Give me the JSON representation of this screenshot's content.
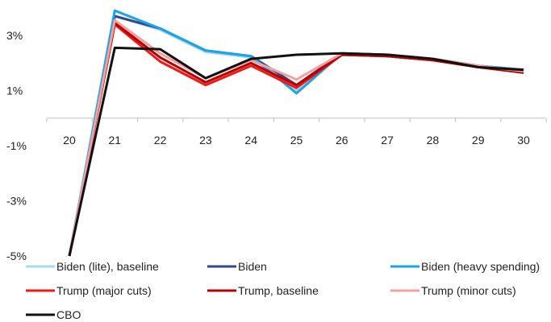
{
  "chart_data": {
    "type": "line",
    "title": "",
    "xlabel": "",
    "ylabel": "",
    "x": [
      "20",
      "21",
      "22",
      "23",
      "24",
      "25",
      "26",
      "27",
      "28",
      "29",
      "30"
    ],
    "y_ticks": [
      "3%",
      "1%",
      "-1%",
      "-3%",
      "-5%"
    ],
    "y_tick_values": [
      3,
      1,
      -1,
      -3,
      -5
    ],
    "ylim": [
      -5,
      4
    ],
    "x_axis_crosses_at": 0,
    "grid": false,
    "legend_position": "bottom",
    "series": [
      {
        "name": "Biden (lite), baseline",
        "color": "#a9d8f5",
        "values": [
          -5.0,
          3.7,
          3.2,
          2.4,
          2.2,
          1.0,
          2.3,
          2.25,
          2.1,
          1.85,
          1.7
        ]
      },
      {
        "name": "Biden",
        "color": "#33488c",
        "values": [
          -5.0,
          3.7,
          3.25,
          2.45,
          2.25,
          1.2,
          2.35,
          2.3,
          2.15,
          1.9,
          1.75
        ]
      },
      {
        "name": "Biden (heavy spending)",
        "color": "#1aa5e6",
        "values": [
          -5.0,
          3.9,
          3.25,
          2.45,
          2.25,
          0.9,
          2.35,
          2.3,
          2.15,
          1.9,
          1.75
        ]
      },
      {
        "name": "Trump (major cuts)",
        "color": "#f01818",
        "values": [
          -5.0,
          3.4,
          2.05,
          1.2,
          1.9,
          1.1,
          2.3,
          2.25,
          2.1,
          1.85,
          1.65
        ]
      },
      {
        "name": "Trump, baseline",
        "color": "#b80000",
        "values": [
          -5.0,
          3.45,
          2.2,
          1.3,
          2.0,
          1.2,
          2.3,
          2.25,
          2.1,
          1.85,
          1.65
        ]
      },
      {
        "name": "Trump (minor cuts)",
        "color": "#f2a0a0",
        "values": [
          -5.0,
          3.55,
          2.35,
          1.45,
          2.1,
          1.4,
          2.35,
          2.3,
          2.15,
          1.9,
          1.7
        ]
      },
      {
        "name": "CBO",
        "color": "#111111",
        "values": [
          -5.0,
          2.55,
          2.5,
          1.45,
          2.15,
          2.3,
          2.35,
          2.3,
          2.15,
          1.85,
          1.75
        ]
      }
    ]
  }
}
